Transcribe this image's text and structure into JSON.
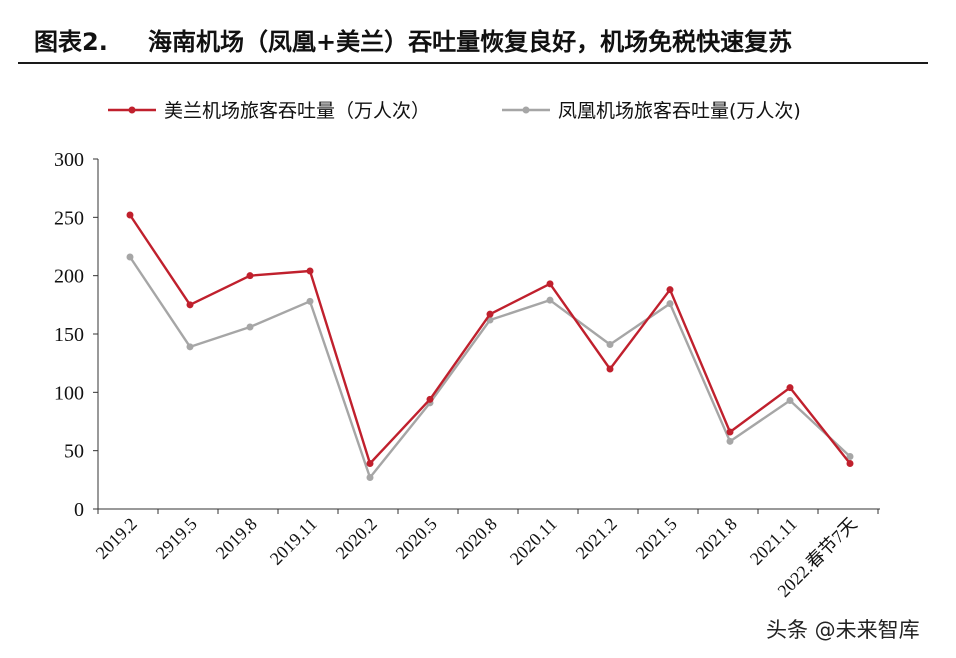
{
  "header": {
    "label": "图表2.",
    "title": "海南机场（凤凰+美兰）吞吐量恢复良好，机场免税快速复苏"
  },
  "watermark": "头条 @未来智库",
  "chart_data": {
    "type": "line",
    "categories": [
      "2019.2",
      "2919.5",
      "2019.8",
      "2019.11",
      "2020.2",
      "2020.5",
      "2020.8",
      "2020.11",
      "2021.2",
      "2021.5",
      "2021.8",
      "2021.11",
      "2022.春节7天"
    ],
    "series": [
      {
        "name": "美兰机场旅客吞吐量（万人次）",
        "color": "#c0202d",
        "values": [
          252,
          175,
          200,
          204,
          39,
          94,
          167,
          193,
          120,
          188,
          66,
          104,
          39
        ]
      },
      {
        "name": "凤凰机场旅客吞吐量(万人次)",
        "color": "#a6a6a6",
        "values": [
          216,
          139,
          156,
          178,
          27,
          91,
          162,
          179,
          141,
          176,
          58,
          93,
          45
        ]
      }
    ],
    "ylim": [
      0,
      300
    ],
    "yticks": [
      0,
      50,
      100,
      150,
      200,
      250,
      300
    ],
    "legend": "top",
    "grid": false
  }
}
